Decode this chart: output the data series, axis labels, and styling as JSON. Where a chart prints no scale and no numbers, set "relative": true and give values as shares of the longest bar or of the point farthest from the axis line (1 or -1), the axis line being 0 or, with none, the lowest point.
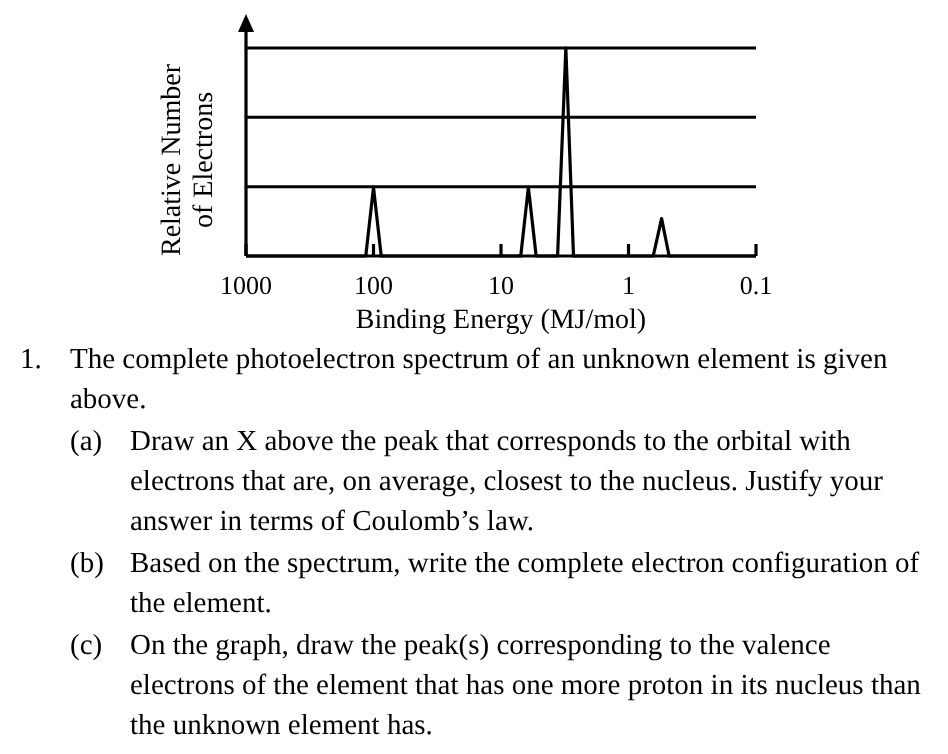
{
  "chart_data": {
    "type": "line",
    "relative": true,
    "log": "x",
    "xlabel": "Binding Energy (MJ/mol)",
    "ylabel": "Relative Number\nof Electrons",
    "xlim": [
      1000,
      0.1
    ],
    "xticks": [
      1000,
      100,
      10,
      1,
      0.1
    ],
    "series": [
      {
        "color": "#000000",
        "x": [
          1000,
          115,
          100,
          87,
          7.0,
          6.1,
          5.3,
          3.6,
          3.1,
          2.7,
          0.64,
          0.55,
          0.48,
          0.1
        ],
        "values": [
          0,
          0,
          0.33,
          0,
          0,
          0.33,
          0,
          0,
          1,
          0,
          0,
          0.18,
          0,
          0
        ]
      }
    ],
    "ref_lines": [
      {
        "axis": "y",
        "value": 0.333,
        "color": "#000000"
      },
      {
        "axis": "y",
        "value": 0.667,
        "color": "#000000"
      },
      {
        "axis": "y",
        "value": 1,
        "color": "#000000"
      }
    ],
    "marker": "none",
    "line_style": "solid",
    "annotations": [
      "1. The complete photoelectron spectrum of an unknown element is given above.",
      "(a) Draw an X above the peak that corresponds to the orbital with electrons that are, on average, closest to the nucleus. Justify your answer in terms of Coulomb’s law.",
      "(b) Based on the spectrum, write the complete electron configuration of the element.",
      "(c) On the graph, draw the peak(s) corresponding to the valence electrons of the element that has one more proton in its nucleus than the unknown element has."
    ]
  }
}
